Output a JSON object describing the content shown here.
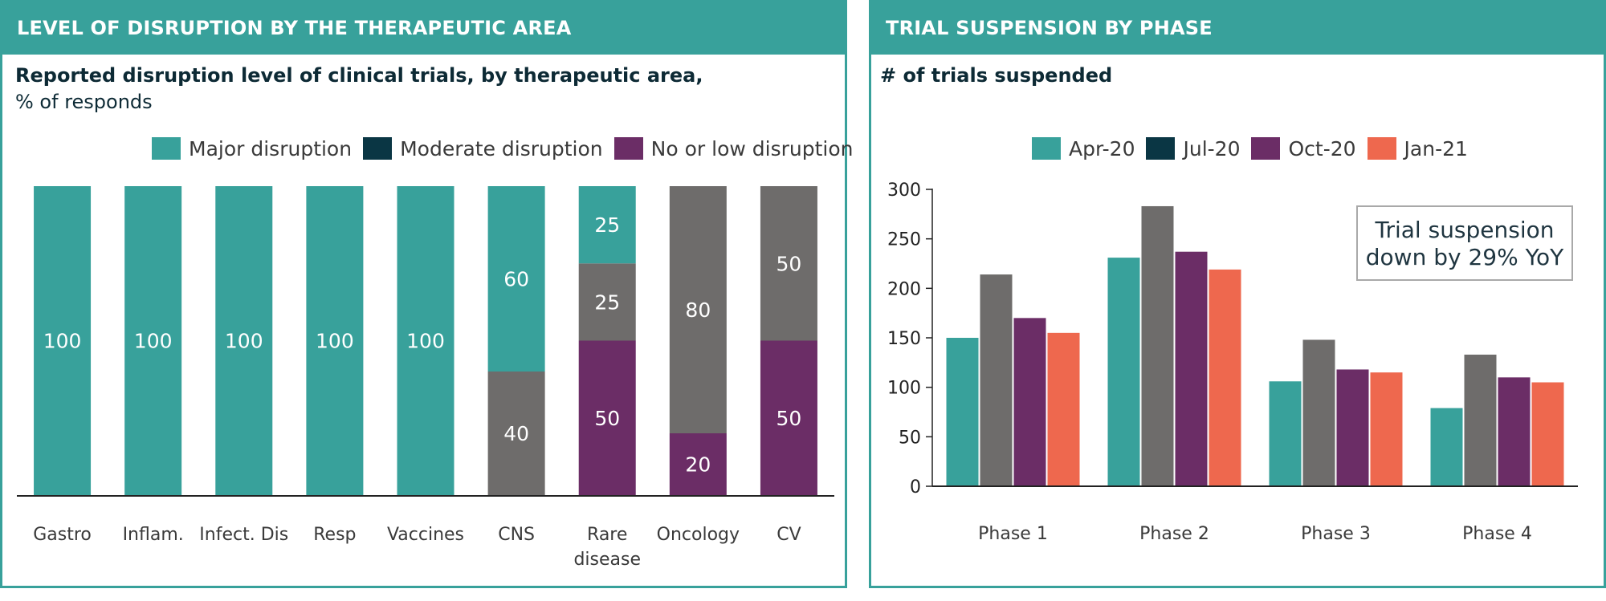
{
  "left_panel": {
    "header": "LEVEL OF DISRUPTION BY THE THERAPEUTIC AREA",
    "subtitle_bold": "Reported disruption level of clinical trials, by therapeutic area,",
    "subtitle_regular": "% of responds"
  },
  "right_panel": {
    "header": "TRIAL SUSPENSION BY PHASE",
    "subtitle_bold": "# of trials suspended",
    "callout_line1": "Trial suspension",
    "callout_line2": "down by 29% YoY"
  },
  "chart_data": [
    {
      "type": "bar",
      "stacked": true,
      "categories": [
        "Gastro",
        "Inflam.",
        "Infect. Dis",
        "Resp",
        "Vaccines",
        "CNS",
        "Rare disease",
        "Oncology",
        "CV"
      ],
      "series": [
        {
          "name": "Major disruption",
          "color": "#38a19b",
          "values": [
            100,
            100,
            100,
            100,
            100,
            60,
            25,
            0,
            0
          ]
        },
        {
          "name": "Moderate disruption",
          "color": "#0a3644",
          "values": [
            0,
            0,
            0,
            0,
            0,
            0,
            0,
            0,
            0
          ]
        },
        {
          "name": "No or low disruption",
          "color": "#6b2d66",
          "values": [
            0,
            0,
            0,
            0,
            0,
            0,
            50,
            20,
            50
          ]
        },
        {
          "name": "",
          "color": "#6e6c6b",
          "values": [
            0,
            0,
            0,
            0,
            0,
            40,
            25,
            80,
            50
          ]
        }
      ],
      "stack_order_bottom_to_top": [
        "No or low disruption",
        "",
        "Major disruption"
      ],
      "ylim": [
        0,
        100
      ]
    },
    {
      "type": "bar",
      "stacked": false,
      "categories": [
        "Phase 1",
        "Phase 2",
        "Phase 3",
        "Phase 4"
      ],
      "series": [
        {
          "name": "Apr-20",
          "color": "#38a19b",
          "values": [
            150,
            231,
            106,
            79
          ]
        },
        {
          "name": "Jul-20",
          "color": "#0a3644",
          "bar_color": "#6e6c6b",
          "values": [
            214,
            283,
            148,
            133
          ]
        },
        {
          "name": "Oct-20",
          "color": "#6b2d66",
          "values": [
            170,
            237,
            118,
            110
          ]
        },
        {
          "name": "Jan-21",
          "color": "#ee684e",
          "values": [
            155,
            219,
            115,
            105
          ]
        }
      ],
      "yticks": [
        0,
        50,
        100,
        150,
        200,
        250,
        300
      ],
      "ylim": [
        0,
        300
      ]
    }
  ]
}
